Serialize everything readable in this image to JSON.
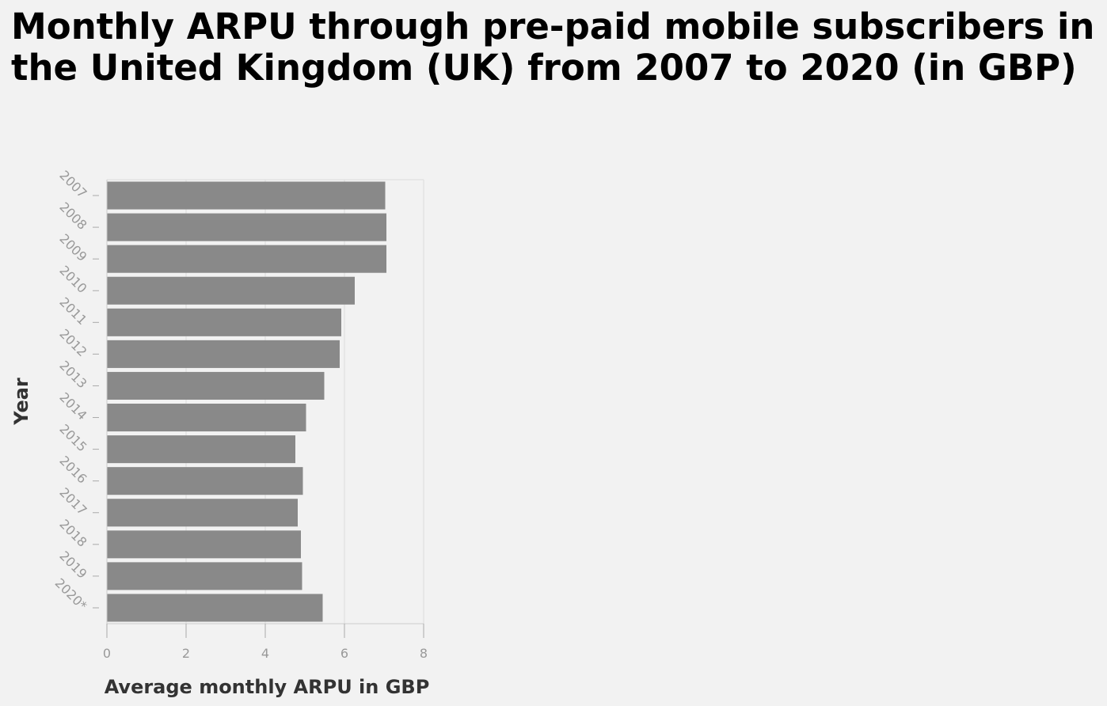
{
  "chart_data": {
    "type": "bar",
    "orientation": "horizontal",
    "title": "Monthly ARPU through pre-paid mobile subscribers in the United Kingdom (UK) from 2007 to 2020 (in GBP)",
    "xlabel": "Average monthly ARPU in GBP",
    "ylabel": "Year",
    "categories": [
      "2007",
      "2008",
      "2009",
      "2010",
      "2011",
      "2012",
      "2013",
      "2014",
      "2015",
      "2016",
      "2017",
      "2018",
      "2019",
      "2020*"
    ],
    "values": [
      7.03,
      7.06,
      7.06,
      6.26,
      5.92,
      5.88,
      5.49,
      5.03,
      4.76,
      4.95,
      4.82,
      4.9,
      4.93,
      5.45
    ],
    "xlim": [
      0,
      8
    ],
    "xticks": [
      0,
      2,
      4,
      6,
      8
    ],
    "grid": true,
    "bar_color": "#898989"
  }
}
